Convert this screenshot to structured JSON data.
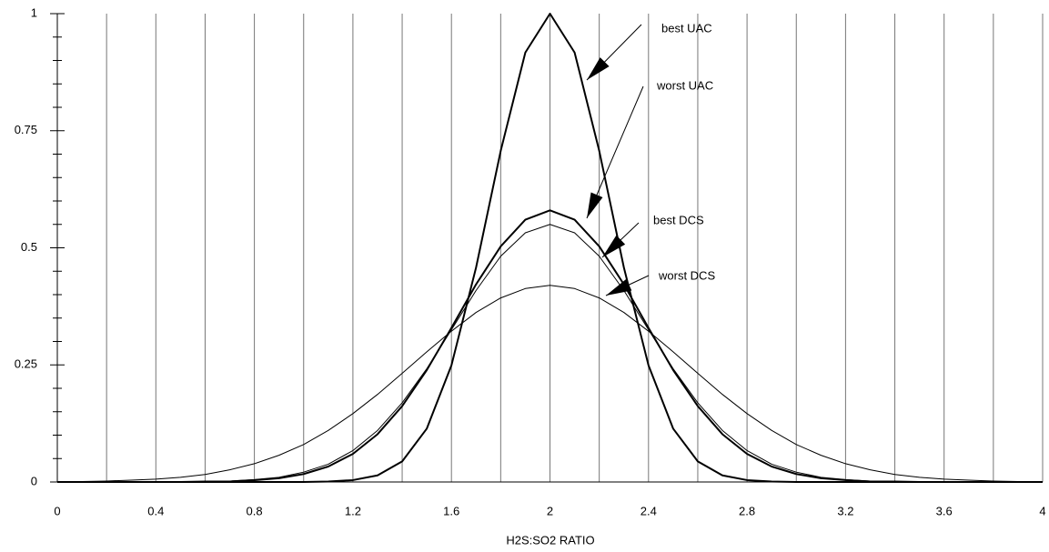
{
  "chart_data": {
    "type": "line",
    "xlabel": "H2S:SO2 RATIO",
    "x": [
      0,
      0.1,
      0.2,
      0.3,
      0.4,
      0.5,
      0.6,
      0.7,
      0.8,
      0.9,
      1,
      1.1,
      1.2,
      1.3,
      1.4,
      1.5,
      1.6,
      1.7,
      1.8,
      1.9,
      2,
      2.1,
      2.2,
      2.3,
      2.4,
      2.5,
      2.6,
      2.7,
      2.8,
      2.9,
      3,
      3.1,
      3.2,
      3.3,
      3.4,
      3.5,
      3.6,
      3.7,
      3.8,
      3.9,
      4
    ],
    "series": [
      {
        "name": "best UAC",
        "color": "#000000",
        "values": [
          0,
          0,
          0,
          0,
          0,
          0,
          0,
          0,
          0,
          0,
          0,
          0.001,
          0.004,
          0.014,
          0.044,
          0.114,
          0.249,
          0.458,
          0.707,
          0.917,
          1,
          0.917,
          0.707,
          0.458,
          0.249,
          0.114,
          0.044,
          0.014,
          0.004,
          0.001,
          0,
          0,
          0,
          0,
          0,
          0,
          0,
          0,
          0,
          0,
          0
        ]
      },
      {
        "name": "worst UAC",
        "color": "#000000",
        "values": [
          0,
          0,
          0,
          0,
          0,
          0,
          0.001,
          0.002,
          0.005,
          0.01,
          0.021,
          0.038,
          0.067,
          0.11,
          0.169,
          0.242,
          0.325,
          0.409,
          0.482,
          0.532,
          0.55,
          0.532,
          0.482,
          0.409,
          0.325,
          0.242,
          0.169,
          0.11,
          0.067,
          0.038,
          0.021,
          0.01,
          0.005,
          0.002,
          0.001,
          0,
          0,
          0,
          0,
          0,
          0
        ]
      },
      {
        "name": "best DCS",
        "color": "#000000",
        "values": [
          0,
          0,
          0,
          0,
          0,
          0,
          0.001,
          0.001,
          0.004,
          0.008,
          0.017,
          0.033,
          0.06,
          0.102,
          0.162,
          0.239,
          0.329,
          0.422,
          0.503,
          0.56,
          0.58,
          0.56,
          0.503,
          0.422,
          0.329,
          0.239,
          0.162,
          0.102,
          0.06,
          0.033,
          0.017,
          0.008,
          0.004,
          0.001,
          0.001,
          0,
          0,
          0,
          0,
          0,
          0
        ]
      },
      {
        "name": "worst DCS",
        "color": "#000000",
        "values": [
          0.001,
          0.001,
          0.002,
          0.004,
          0.006,
          0.01,
          0.016,
          0.026,
          0.039,
          0.057,
          0.08,
          0.11,
          0.146,
          0.187,
          0.232,
          0.278,
          0.322,
          0.362,
          0.393,
          0.413,
          0.42,
          0.413,
          0.393,
          0.362,
          0.322,
          0.278,
          0.232,
          0.187,
          0.146,
          0.11,
          0.08,
          0.057,
          0.039,
          0.026,
          0.016,
          0.01,
          0.006,
          0.004,
          0.002,
          0.001,
          0.001
        ]
      }
    ],
    "xlim": [
      0,
      4
    ],
    "ylim": [
      0,
      1
    ],
    "xticks": [
      0,
      0.4,
      0.8,
      1.2,
      1.6,
      2,
      2.4,
      2.8,
      3.2,
      3.6,
      4
    ],
    "yticks": [
      0,
      0.25,
      0.5,
      0.75,
      1
    ],
    "grid": true
  }
}
